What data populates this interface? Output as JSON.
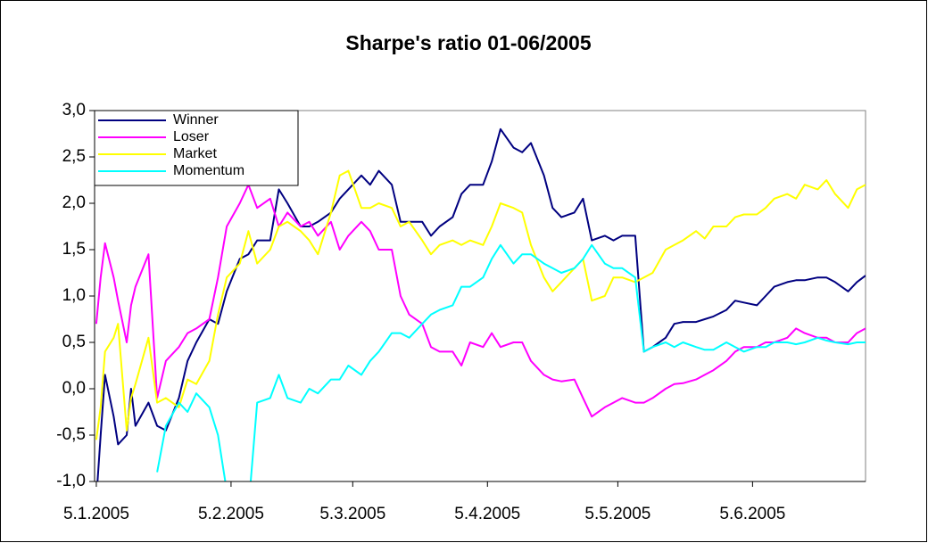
{
  "chart_data": {
    "type": "line",
    "title": "Sharpe's ratio 01-06/2005",
    "x": [
      5,
      6,
      7,
      9,
      10,
      12,
      13,
      14,
      17,
      19,
      21,
      24,
      26,
      28,
      31,
      33,
      35,
      38,
      40,
      42,
      45,
      47,
      49,
      52,
      54,
      56,
      59,
      61,
      63,
      66,
      68,
      70,
      73,
      75,
      77,
      80,
      82,
      84,
      87,
      89,
      91,
      94,
      96,
      98,
      101,
      103,
      105,
      108,
      110,
      112,
      115,
      117,
      119,
      122,
      124,
      126,
      129,
      131,
      133,
      136,
      138,
      140,
      143,
      145,
      147,
      150,
      152,
      154,
      157,
      159,
      161,
      164,
      166,
      168,
      171,
      173,
      175,
      178,
      180,
      182
    ],
    "xlim": [
      4.6,
      182
    ],
    "xticks": [
      {
        "value": 5,
        "label": "5.1.2005"
      },
      {
        "value": 36,
        "label": "5.2.2005"
      },
      {
        "value": 64,
        "label": "5.3.2005"
      },
      {
        "value": 95,
        "label": "5.4.2005"
      },
      {
        "value": 125,
        "label": "5.5.2005"
      },
      {
        "value": 156,
        "label": "5.6.2005"
      }
    ],
    "ylim": [
      -1,
      3
    ],
    "yticks": [
      {
        "value": -1,
        "label": "-1,0"
      },
      {
        "value": -0.5,
        "label": "-0,5"
      },
      {
        "value": 0,
        "label": "0,0"
      },
      {
        "value": 0.5,
        "label": "0,5"
      },
      {
        "value": 1,
        "label": "1,0"
      },
      {
        "value": 1.5,
        "label": "1,5"
      },
      {
        "value": 2,
        "label": "2,0"
      },
      {
        "value": 2.5,
        "label": "2,5"
      },
      {
        "value": 3,
        "label": "3,0"
      }
    ],
    "legend": "upper left",
    "series": [
      {
        "name": "Winner",
        "color": "#000080",
        "values": [
          -1.2,
          -0.5,
          0.15,
          -0.3,
          -0.6,
          -0.5,
          0.0,
          -0.4,
          -0.15,
          -0.4,
          -0.45,
          -0.1,
          0.3,
          0.5,
          0.75,
          0.7,
          1.05,
          1.4,
          1.45,
          1.6,
          1.6,
          2.15,
          2.0,
          1.75,
          1.75,
          1.8,
          1.9,
          2.05,
          2.15,
          2.3,
          2.2,
          2.35,
          2.2,
          1.8,
          1.8,
          1.8,
          1.65,
          1.75,
          1.85,
          2.1,
          2.2,
          2.2,
          2.45,
          2.8,
          2.6,
          2.55,
          2.65,
          2.3,
          1.95,
          1.85,
          1.9,
          2.05,
          1.6,
          1.65,
          1.6,
          1.65,
          1.65,
          0.4,
          0.45,
          0.55,
          0.7,
          0.72,
          0.72,
          0.75,
          0.78,
          0.85,
          0.95,
          0.93,
          0.9,
          1.0,
          1.1,
          1.15,
          1.17,
          1.17,
          1.2,
          1.2,
          1.15,
          1.05,
          1.15,
          1.22
        ]
      },
      {
        "name": "Loser",
        "color": "#ff00ff",
        "values": [
          0.7,
          1.2,
          1.57,
          1.2,
          0.95,
          0.5,
          0.9,
          1.1,
          1.45,
          -0.1,
          0.3,
          0.45,
          0.6,
          0.65,
          0.75,
          1.2,
          1.75,
          2.0,
          2.2,
          1.95,
          2.05,
          1.75,
          1.9,
          1.75,
          1.8,
          1.65,
          1.8,
          1.5,
          1.65,
          1.8,
          1.7,
          1.5,
          1.5,
          1.0,
          0.8,
          0.7,
          0.45,
          0.4,
          0.4,
          0.25,
          0.5,
          0.45,
          0.6,
          0.45,
          0.5,
          0.5,
          0.3,
          0.15,
          0.1,
          0.08,
          0.1,
          -0.1,
          -0.3,
          -0.2,
          -0.15,
          -0.1,
          -0.15,
          -0.15,
          -0.1,
          0.0,
          0.05,
          0.06,
          0.1,
          0.15,
          0.2,
          0.3,
          0.4,
          0.45,
          0.45,
          0.5,
          0.5,
          0.55,
          0.65,
          0.6,
          0.55,
          0.55,
          0.5,
          0.5,
          0.6,
          0.65
        ]
      },
      {
        "name": "Market",
        "color": "#ffff00",
        "values": [
          -0.55,
          -0.2,
          0.4,
          0.55,
          0.7,
          -0.45,
          -0.1,
          0.05,
          0.55,
          -0.15,
          -0.1,
          -0.2,
          0.1,
          0.05,
          0.3,
          0.8,
          1.2,
          1.35,
          1.7,
          1.35,
          1.5,
          1.75,
          1.8,
          1.7,
          1.6,
          1.45,
          1.9,
          2.3,
          2.35,
          1.95,
          1.95,
          2.0,
          1.95,
          1.75,
          1.8,
          1.6,
          1.45,
          1.55,
          1.6,
          1.55,
          1.6,
          1.55,
          1.75,
          2.0,
          1.95,
          1.9,
          1.55,
          1.2,
          1.05,
          1.15,
          1.3,
          1.4,
          0.95,
          1.0,
          1.2,
          1.2,
          1.15,
          1.2,
          1.25,
          1.5,
          1.55,
          1.6,
          1.7,
          1.62,
          1.75,
          1.75,
          1.85,
          1.88,
          1.88,
          1.95,
          2.05,
          2.1,
          2.05,
          2.2,
          2.15,
          2.25,
          2.1,
          1.95,
          2.15,
          2.2
        ]
      },
      {
        "name": "Momentum",
        "color": "#00ffff",
        "values": [
          null,
          null,
          null,
          null,
          null,
          null,
          null,
          null,
          null,
          -0.9,
          -0.4,
          -0.15,
          -0.25,
          -0.05,
          -0.2,
          -0.5,
          -1.1,
          -1.3,
          -1.3,
          -0.15,
          -0.1,
          0.15,
          -0.1,
          -0.15,
          0.0,
          -0.05,
          0.1,
          0.1,
          0.25,
          0.15,
          0.3,
          0.4,
          0.6,
          0.6,
          0.55,
          0.7,
          0.8,
          0.85,
          0.9,
          1.1,
          1.1,
          1.2,
          1.4,
          1.55,
          1.35,
          1.45,
          1.45,
          1.35,
          1.3,
          1.25,
          1.3,
          1.4,
          1.55,
          1.35,
          1.3,
          1.3,
          1.2,
          0.4,
          0.45,
          0.5,
          0.45,
          0.5,
          0.45,
          0.42,
          0.42,
          0.5,
          0.45,
          0.4,
          0.45,
          0.45,
          0.5,
          0.5,
          0.48,
          0.5,
          0.55,
          0.52,
          0.5,
          0.48,
          0.5,
          0.5
        ]
      }
    ]
  }
}
